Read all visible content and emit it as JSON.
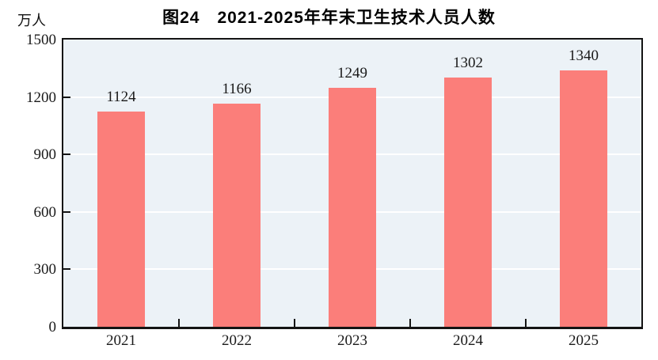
{
  "figure": {
    "unit_label": "万人"
  },
  "chart_data": {
    "type": "bar",
    "title": "图24　2021-2025年年末卫生技术人员人数",
    "categories": [
      "2021",
      "2022",
      "2023",
      "2024",
      "2025"
    ],
    "values": [
      1124,
      1166,
      1249,
      1302,
      1340
    ],
    "xlabel": "",
    "ylabel": "万人",
    "ylim": [
      0,
      1500
    ],
    "yticks": [
      0,
      300,
      600,
      900,
      1200,
      1500
    ],
    "grid": true,
    "legend": "none",
    "data_labels_shown": true,
    "colors": {
      "bar": "#FB7E7A",
      "plot_background": "#ECF2F7",
      "gridline": "#FFFFFF",
      "axis": "#141414",
      "text": "#1A1A1A"
    }
  }
}
